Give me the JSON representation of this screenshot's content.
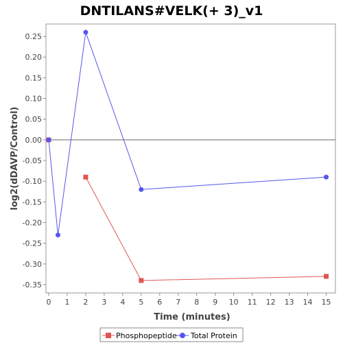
{
  "chart_data": {
    "type": "line",
    "title": "DNTILANS#VELK(+ 3)_v1",
    "xlabel": "Time (minutes)",
    "ylabel": "log2(dDAVP/Control)",
    "xlim": [
      0,
      15.5
    ],
    "ylim": [
      -0.37,
      0.28
    ],
    "xticks": [
      0,
      1,
      2,
      3,
      4,
      5,
      6,
      7,
      8,
      9,
      10,
      11,
      12,
      13,
      14,
      15
    ],
    "yticks": [
      0.25,
      0.2,
      0.15,
      0.1,
      0.05,
      0.0,
      -0.05,
      -0.1,
      -0.15,
      -0.2,
      -0.25,
      -0.3,
      -0.35
    ],
    "ytick_labels": [
      "0.25",
      "0.20",
      "0.15",
      "0.10",
      "0.05",
      "0.00",
      "-0.05",
      "-0.10",
      "-0.15",
      "-0.20",
      "-0.25",
      "-0.30",
      "-0.35"
    ],
    "zero_line": true,
    "grid": false,
    "legend_position": "bottom",
    "series": [
      {
        "name": "Phosphopeptide",
        "color": "#e05555",
        "marker": "square",
        "segments": [
          [
            {
              "x": 0,
              "y": 0.0
            }
          ],
          [
            {
              "x": 2,
              "y": -0.09
            },
            {
              "x": 5,
              "y": -0.34
            },
            {
              "x": 15,
              "y": -0.33
            }
          ]
        ]
      },
      {
        "name": "Total Protein",
        "color": "#5555ee",
        "marker": "circle",
        "segments": [
          [
            {
              "x": 0,
              "y": 0.0
            },
            {
              "x": 0.5,
              "y": -0.23
            },
            {
              "x": 2,
              "y": 0.26
            },
            {
              "x": 5,
              "y": -0.12
            },
            {
              "x": 15,
              "y": -0.09
            }
          ]
        ]
      }
    ]
  }
}
